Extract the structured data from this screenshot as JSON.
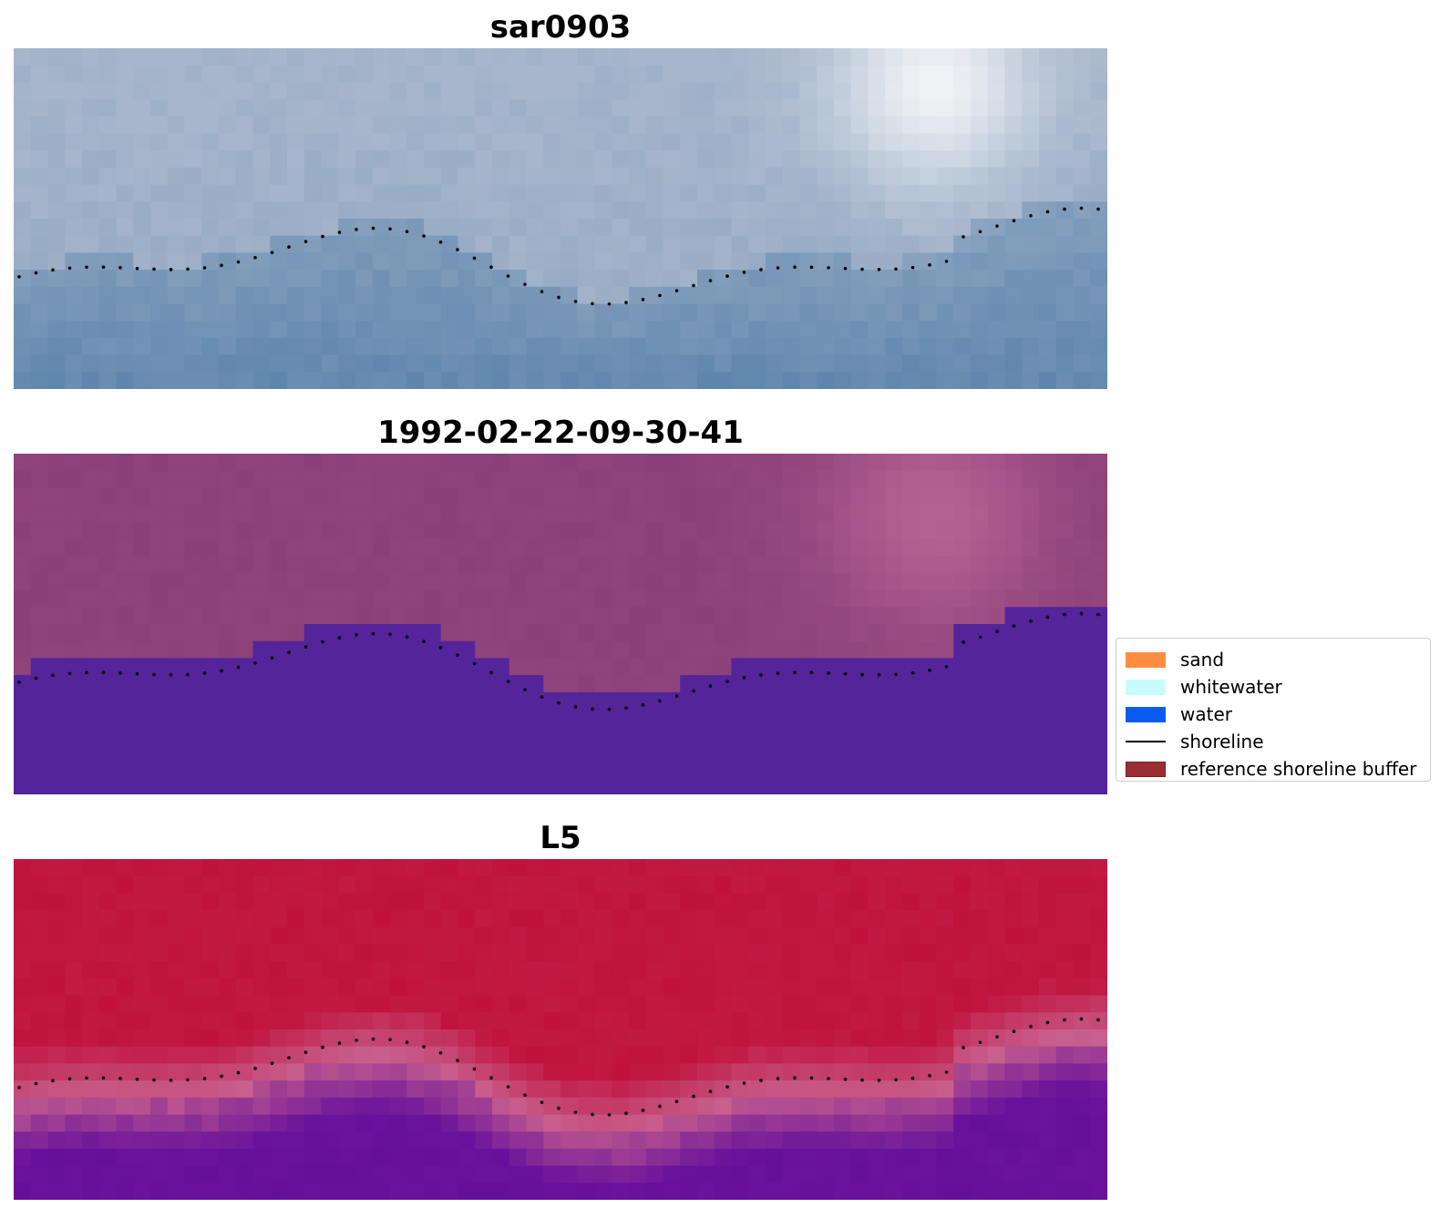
{
  "panels": [
    {
      "id": "sar",
      "title": "sar0903"
    },
    {
      "id": "classified",
      "title": "1992-02-22-09-30-41"
    },
    {
      "id": "l5",
      "title": "L5"
    }
  ],
  "legend": {
    "items": [
      {
        "label": "sand",
        "color": "#ff8c3f",
        "kind": "patch"
      },
      {
        "label": "whitewater",
        "color": "#c8fbff",
        "kind": "patch"
      },
      {
        "label": "water",
        "color": "#0a5cf0",
        "kind": "patch"
      },
      {
        "label": "shoreline",
        "color": "#000000",
        "kind": "line"
      },
      {
        "label": "reference shoreline buffer",
        "color": "#9a2e33",
        "kind": "buffer"
      }
    ]
  },
  "colors": {
    "sar_top": "#a7b6cb",
    "sar_bottom": "#5f86ad",
    "sar_highlight": "#f4f6f8",
    "class_land": "#8f437b",
    "class_land_bright": "#b96596",
    "class_water": "#54249b",
    "l5_top": "#c0123c",
    "l5_mid": "#c8608e",
    "l5_bottom": "#6a129c",
    "shoreline_dots": "#000000"
  }
}
